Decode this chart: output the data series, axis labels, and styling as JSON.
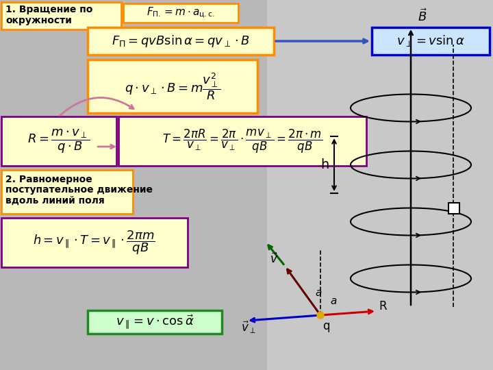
{
  "bg_color": "#c8c8c8",
  "yellow_bg": "#ffffcc",
  "orange": "#ff8c00",
  "purple": "#800080",
  "blue_border": "#0000cc",
  "blue_bg": "#cce5ff",
  "green_border": "#228822",
  "green_bg": "#ccffcc",
  "pink_arrow": "#cc7799",
  "title1_line1": "1. Вращение по",
  "title1_line2": "окружности",
  "title2_line1": "2. Равномерное",
  "title2_line2": "поступательное движение",
  "title2_line3": "вдоль линий поля"
}
